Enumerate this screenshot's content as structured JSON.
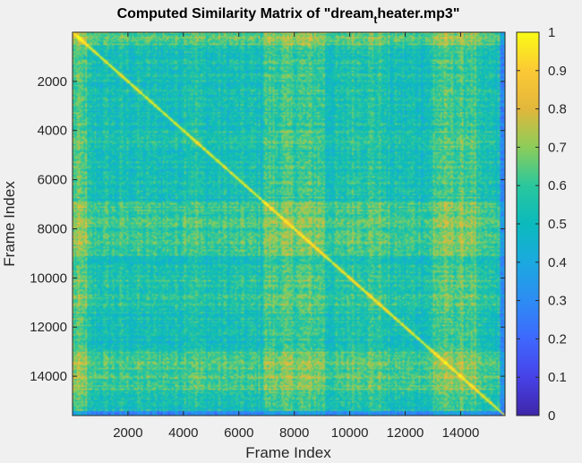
{
  "chart_data": {
    "type": "heatmap",
    "title": {
      "before_subscript": "Computed Similarity Matrix of \"dream",
      "subscript": "t",
      "after_subscript": "heater.mp3\""
    },
    "xlabel": "Frame Index",
    "ylabel": "Frame Index",
    "xlim": [
      1,
      15600
    ],
    "ylim": [
      1,
      15600
    ],
    "y_direction": "reverse",
    "x_ticks": [
      2000,
      4000,
      6000,
      8000,
      10000,
      12000,
      14000
    ],
    "x_tick_labels": [
      "2000",
      "4000",
      "6000",
      "8000",
      "10000",
      "12000",
      "14000"
    ],
    "y_ticks": [
      2000,
      4000,
      6000,
      8000,
      10000,
      12000,
      14000
    ],
    "y_tick_labels": [
      "2000",
      "4000",
      "6000",
      "8000",
      "10000",
      "12000",
      "14000"
    ],
    "colorbar": {
      "colormap": "parula",
      "clim": [
        0,
        1
      ],
      "ticks": [
        0,
        0.1,
        0.2,
        0.3,
        0.4,
        0.5,
        0.6,
        0.7,
        0.8,
        0.9,
        1
      ],
      "tick_labels": [
        "0",
        "0.1",
        "0.2",
        "0.3",
        "0.4",
        "0.5",
        "0.6",
        "0.7",
        "0.8",
        "0.9",
        "1"
      ]
    },
    "approx_value_range": [
      0.25,
      1
    ],
    "notes_visible": "Symmetric matrix with a bright diagonal of ones; brighter blocks near frames 7000-9000 and 13000-14500; darker band near frame 15500"
  }
}
